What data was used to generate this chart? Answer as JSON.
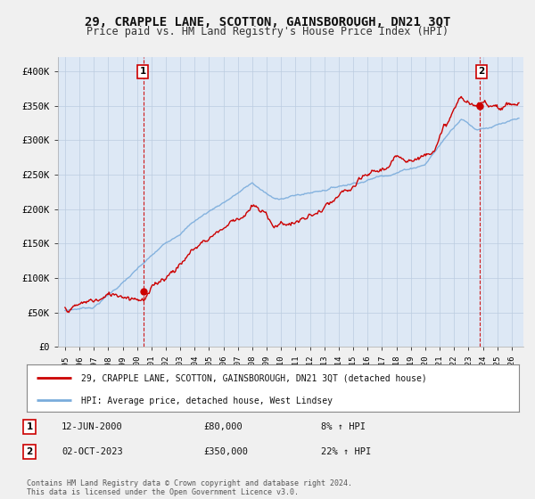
{
  "title": "29, CRAPPLE LANE, SCOTTON, GAINSBOROUGH, DN21 3QT",
  "subtitle": "Price paid vs. HM Land Registry's House Price Index (HPI)",
  "title_fontsize": 10,
  "subtitle_fontsize": 8.5,
  "background_color": "#f0f0f0",
  "plot_bg_color": "#dde8f5",
  "grid_color": "#bbcce0",
  "ylim": [
    0,
    420000
  ],
  "yticks": [
    0,
    50000,
    100000,
    150000,
    200000,
    250000,
    300000,
    350000,
    400000
  ],
  "ytick_labels": [
    "£0",
    "£50K",
    "£100K",
    "£150K",
    "£200K",
    "£250K",
    "£300K",
    "£350K",
    "£400K"
  ],
  "sale1_year": 2000.45,
  "sale1_price": 80000,
  "sale1_label": "1",
  "sale2_year": 2023.75,
  "sale2_price": 350000,
  "sale2_label": "2",
  "vline_color": "#cc0000",
  "legend_label_red": "29, CRAPPLE LANE, SCOTTON, GAINSBOROUGH, DN21 3QT (detached house)",
  "legend_label_blue": "HPI: Average price, detached house, West Lindsey",
  "footer_text": "Contains HM Land Registry data © Crown copyright and database right 2024.\nThis data is licensed under the Open Government Licence v3.0.",
  "red_line_color": "#cc0000",
  "blue_line_color": "#7aacdc",
  "marker_color": "#cc0000",
  "ann1_date": "12-JUN-2000",
  "ann1_price": "£80,000",
  "ann1_hpi": "8% ↑ HPI",
  "ann2_date": "02-OCT-2023",
  "ann2_price": "£350,000",
  "ann2_hpi": "22% ↑ HPI",
  "xmin": 1994.5,
  "xmax": 2026.8
}
